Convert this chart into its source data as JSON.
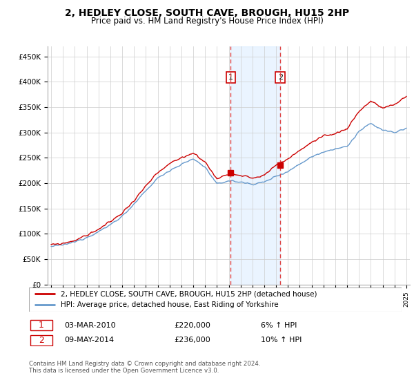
{
  "title": "2, HEDLEY CLOSE, SOUTH CAVE, BROUGH, HU15 2HP",
  "subtitle": "Price paid vs. HM Land Registry's House Price Index (HPI)",
  "legend_line1": "2, HEDLEY CLOSE, SOUTH CAVE, BROUGH, HU15 2HP (detached house)",
  "legend_line2": "HPI: Average price, detached house, East Riding of Yorkshire",
  "footer": "Contains HM Land Registry data © Crown copyright and database right 2024.\nThis data is licensed under the Open Government Licence v3.0.",
  "sale1_date": "03-MAR-2010",
  "sale1_price": "£220,000",
  "sale1_hpi": "6% ↑ HPI",
  "sale2_date": "09-MAY-2014",
  "sale2_price": "£236,000",
  "sale2_hpi": "10% ↑ HPI",
  "ylabel_ticks": [
    "£0",
    "£50K",
    "£100K",
    "£150K",
    "£200K",
    "£250K",
    "£300K",
    "£350K",
    "£400K",
    "£450K"
  ],
  "ytick_values": [
    0,
    50000,
    100000,
    150000,
    200000,
    250000,
    300000,
    350000,
    400000,
    450000
  ],
  "ylim": [
    0,
    470000
  ],
  "hpi_color": "#6699cc",
  "price_color": "#cc0000",
  "vline_color": "#dd4444",
  "grid_color": "#cccccc",
  "sale1_x": 2010.17,
  "sale1_y": 220000,
  "sale2_x": 2014.36,
  "sale2_y": 236000,
  "xmin": 1995,
  "xmax": 2025
}
